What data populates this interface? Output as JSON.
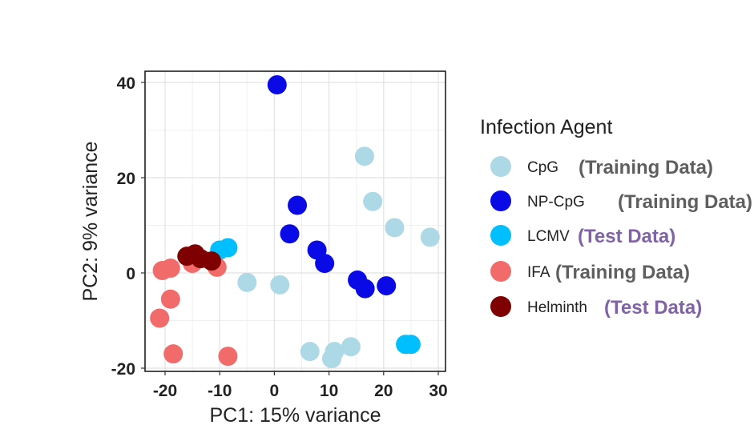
{
  "chart_data": {
    "type": "scatter",
    "title": "",
    "xlabel": "PC1: 15% variance",
    "ylabel": "PC2: 9% variance",
    "xlim": [
      -23,
      31
    ],
    "ylim": [
      -21,
      42
    ],
    "x_ticks": [
      -20,
      -10,
      0,
      10,
      20,
      30
    ],
    "y_ticks": [
      -20,
      0,
      20,
      40
    ],
    "grid": true,
    "legend_title": "Infection Agent",
    "legend_position": "right",
    "series": [
      {
        "name": "CpG",
        "note": "(Training Data)",
        "color": "#ADD8E6",
        "note_color": "#5f5f5f",
        "points": [
          [
            16.5,
            24.5
          ],
          [
            18,
            15
          ],
          [
            22,
            9.5
          ],
          [
            28.5,
            7.5
          ],
          [
            -5,
            -2
          ],
          [
            1,
            -2.5
          ],
          [
            6.5,
            -16.5
          ],
          [
            10.5,
            -18
          ],
          [
            11,
            -16.5
          ],
          [
            14,
            -15.5
          ]
        ]
      },
      {
        "name": "NP-CpG",
        "note": "(Training Data)",
        "color": "#0A0AE6",
        "note_color": "#5f5f5f",
        "points": [
          [
            0.5,
            39.5
          ],
          [
            4.2,
            14.2
          ],
          [
            2.8,
            8.2
          ],
          [
            7.8,
            4.8
          ],
          [
            9.2,
            2
          ],
          [
            15.2,
            -1.5
          ],
          [
            16.6,
            -3.3
          ],
          [
            20.5,
            -2.7
          ]
        ]
      },
      {
        "name": "LCMV",
        "note": "(Test Data)",
        "color": "#00BFFF",
        "note_color": "#8063a6",
        "points": [
          [
            -10,
            4.8
          ],
          [
            -8.5,
            5.3
          ],
          [
            24,
            -15
          ],
          [
            25,
            -15
          ]
        ]
      },
      {
        "name": "IFA",
        "note": "(Training Data)",
        "color": "#F26B6B",
        "note_color": "#5f5f5f",
        "points": [
          [
            -20.5,
            0.5
          ],
          [
            -19,
            1
          ],
          [
            -15,
            2
          ],
          [
            -10.5,
            1.2
          ],
          [
            -19,
            -5.5
          ],
          [
            -21,
            -9.5
          ],
          [
            -18.5,
            -17
          ],
          [
            -8.5,
            -17.5
          ]
        ]
      },
      {
        "name": "Helminth",
        "note": "(Test Data)",
        "color": "#7F0000",
        "note_color": "#8063a6",
        "points": [
          [
            -16,
            3.5
          ],
          [
            -14.5,
            4
          ],
          [
            -13.5,
            3
          ],
          [
            -11.5,
            2.5
          ]
        ]
      }
    ]
  }
}
